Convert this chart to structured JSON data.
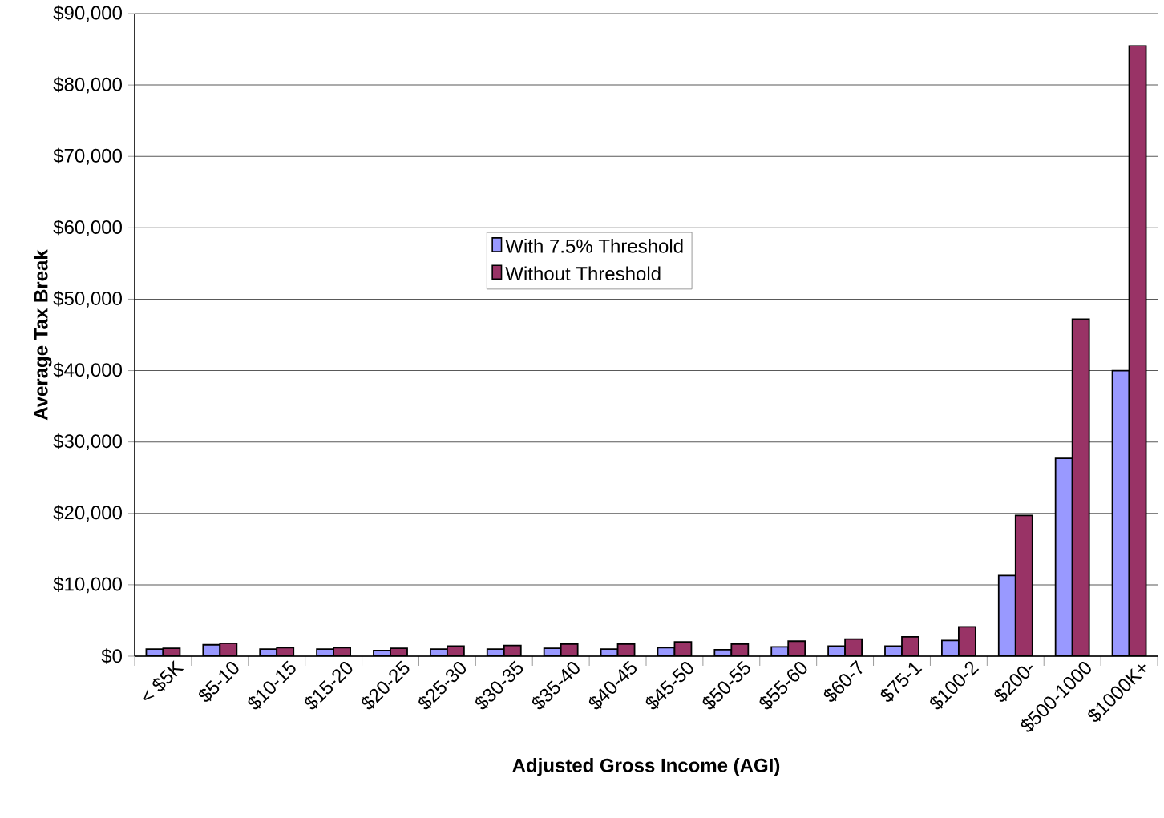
{
  "chart_data": {
    "type": "bar",
    "xlabel": "Adjusted Gross Income (AGI)",
    "ylabel": "Average Tax Break",
    "categories": [
      "< $5K",
      "$5-10",
      "$10-15",
      "$15-20",
      "$20-25",
      "$25-30",
      "$30-35",
      "$35-40",
      "$40-45",
      "$45-50",
      "$50-55",
      "$55-60",
      "$60-7",
      "$75-1",
      "$100-2",
      "$200-",
      "$500-1000",
      "$1000K+"
    ],
    "series": [
      {
        "name": "With 7.5% Threshold",
        "color": "#9999ff",
        "values": [
          1000,
          1600,
          1000,
          1000,
          800,
          1000,
          1000,
          1100,
          1000,
          1200,
          900,
          1300,
          1400,
          1400,
          2200,
          11300,
          27700,
          40000
        ]
      },
      {
        "name": "Without Threshold",
        "color": "#993366",
        "values": [
          1100,
          1800,
          1200,
          1200,
          1100,
          1400,
          1500,
          1700,
          1700,
          2000,
          1700,
          2100,
          2400,
          2700,
          4100,
          19700,
          47200,
          85500
        ]
      }
    ],
    "ylim": [
      0,
      90000
    ],
    "yticks": [
      {
        "value": 0,
        "label": "$0"
      },
      {
        "value": 10000,
        "label": "$10,000"
      },
      {
        "value": 20000,
        "label": "$20,000"
      },
      {
        "value": 30000,
        "label": "$30,000"
      },
      {
        "value": 40000,
        "label": "$40,000"
      },
      {
        "value": 50000,
        "label": "$50,000"
      },
      {
        "value": 60000,
        "label": "$60,000"
      },
      {
        "value": 70000,
        "label": "$70,000"
      },
      {
        "value": 80000,
        "label": "$80,000"
      },
      {
        "value": 90000,
        "label": "$90,000"
      }
    ],
    "grid": "y",
    "legend": "center"
  }
}
